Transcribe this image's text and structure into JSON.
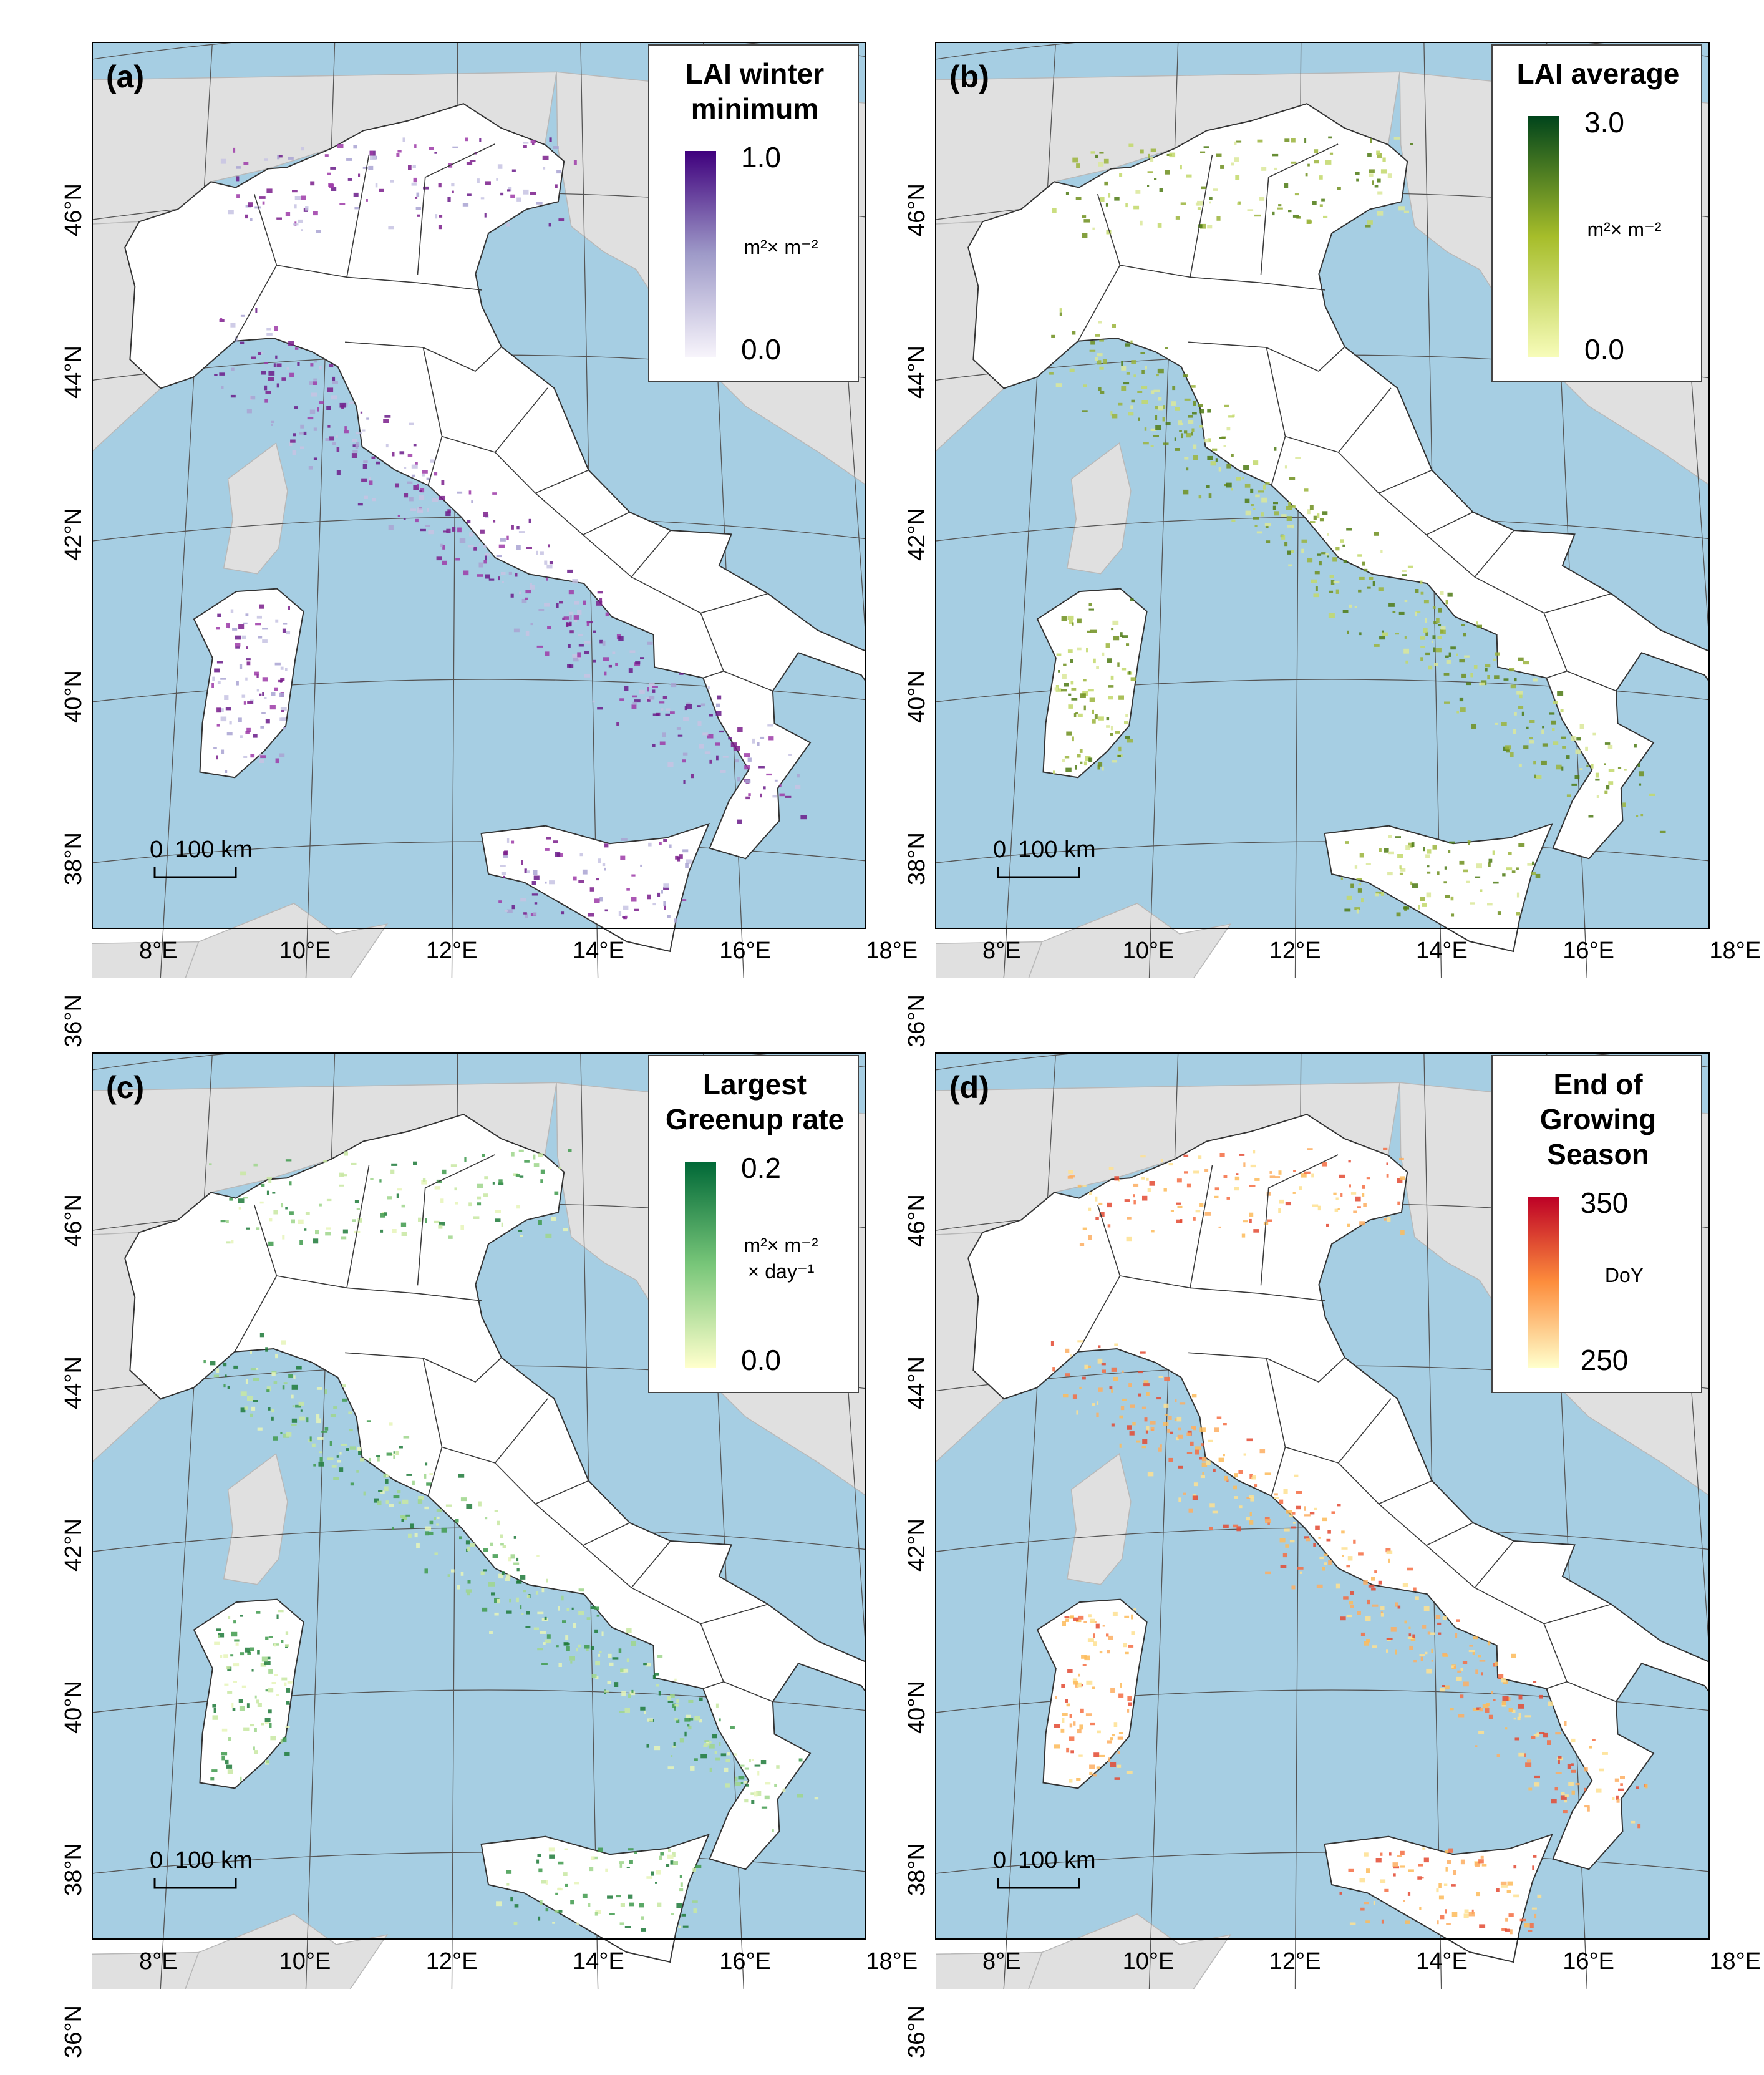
{
  "map": {
    "lat_labels": [
      "46°N",
      "44°N",
      "42°N",
      "40°N",
      "38°N",
      "36°N"
    ],
    "lon_labels": [
      "8°E",
      "10°E",
      "12°E",
      "14°E",
      "16°E",
      "18°E"
    ],
    "scalebar": {
      "start": "0",
      "end": "100 km"
    },
    "colors": {
      "sea": "#a6cee3",
      "land_other": "#e0e0e0",
      "italy": "#ffffff",
      "border": "#333333"
    }
  },
  "panels": [
    {
      "tag": "(a)",
      "legend": {
        "title_lines": [
          "LAI winter",
          "minimum"
        ],
        "max": "1.0",
        "min": "0.0",
        "unit_lines": [
          "m²× m⁻²"
        ],
        "color_low": "#f7f4fb",
        "color_mid": "#9e9ac8",
        "color_high": "#3f007d"
      },
      "pixel_colors": [
        "#7b1e8c",
        "#9e3ba8",
        "#a9a3d2",
        "#c7c3e3",
        "#6a1b8a"
      ]
    },
    {
      "tag": "(b)",
      "legend": {
        "title_lines": [
          "LAI average"
        ],
        "max": "3.0",
        "min": "0.0",
        "unit_lines": [
          "m²× m⁻²"
        ],
        "color_low": "#f7fcb9",
        "color_mid": "#a6bd2a",
        "color_high": "#00441b"
      },
      "pixel_colors": [
        "#c2d86a",
        "#9bb43c",
        "#6f8f1f",
        "#dbe89a",
        "#4d7a14"
      ]
    },
    {
      "tag": "(c)",
      "legend": {
        "title_lines": [
          "Largest",
          "Greenup rate"
        ],
        "max": "0.2",
        "min": "0.0",
        "unit_lines": [
          "m²× m⁻²",
          "× day⁻¹"
        ],
        "color_low": "#ffffcc",
        "color_mid": "#78c679",
        "color_high": "#006837"
      },
      "pixel_colors": [
        "#9fd68c",
        "#3f9a4c",
        "#c8e8a2",
        "#1e7a3a",
        "#e6f4b8"
      ]
    },
    {
      "tag": "(d)",
      "legend": {
        "title_lines": [
          "End of",
          "Growing",
          "Season"
        ],
        "max": "350",
        "min": "250",
        "unit_lines": [
          "DoY"
        ],
        "color_low": "#ffffcc",
        "color_mid": "#fd8d3c",
        "color_high": "#bd0026"
      },
      "pixel_colors": [
        "#fdae61",
        "#f46d43",
        "#fee090",
        "#e34a33",
        "#fdbb5a"
      ]
    }
  ]
}
